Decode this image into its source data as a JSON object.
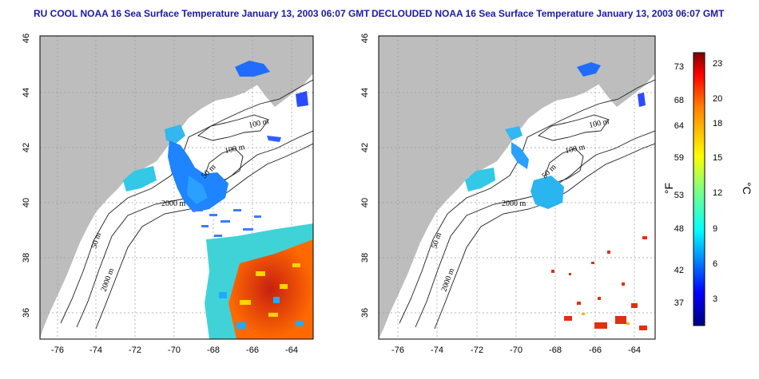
{
  "maps": [
    {
      "id": "left",
      "title": "RU COOL NOAA 16 Sea Surface Temperature January 13, 2003 06:07 GMT"
    },
    {
      "id": "right",
      "title": "DECLOUDED NOAA 16 Sea Surface Temperature January 13, 2003 06:07 GMT"
    }
  ],
  "axes": {
    "lon_ticks": [
      "-76",
      "-74",
      "-72",
      "-70",
      "-68",
      "-66",
      "-64"
    ],
    "lat_ticks": [
      "36",
      "38",
      "40",
      "42",
      "44",
      "46"
    ]
  },
  "contour_labels": [
    "100 m",
    "100 m",
    "50 m",
    "2000 m",
    "50 m",
    "2000 m"
  ],
  "colorbar": {
    "unit_f": "°F",
    "unit_c": "°C",
    "f_ticks": [
      "73",
      "68",
      "64",
      "59",
      "53",
      "48",
      "42",
      "37"
    ],
    "c_ticks": [
      "23",
      "20",
      "18",
      "15",
      "12",
      "9",
      "6",
      "3"
    ]
  },
  "colors": {
    "title": "#1a1aa8",
    "land": "#bdbdbd",
    "colormap": [
      "#00007f",
      "#0000ff",
      "#0080ff",
      "#00ffff",
      "#80ff80",
      "#ffff00",
      "#ff8000",
      "#ff0000",
      "#7f0000"
    ]
  }
}
